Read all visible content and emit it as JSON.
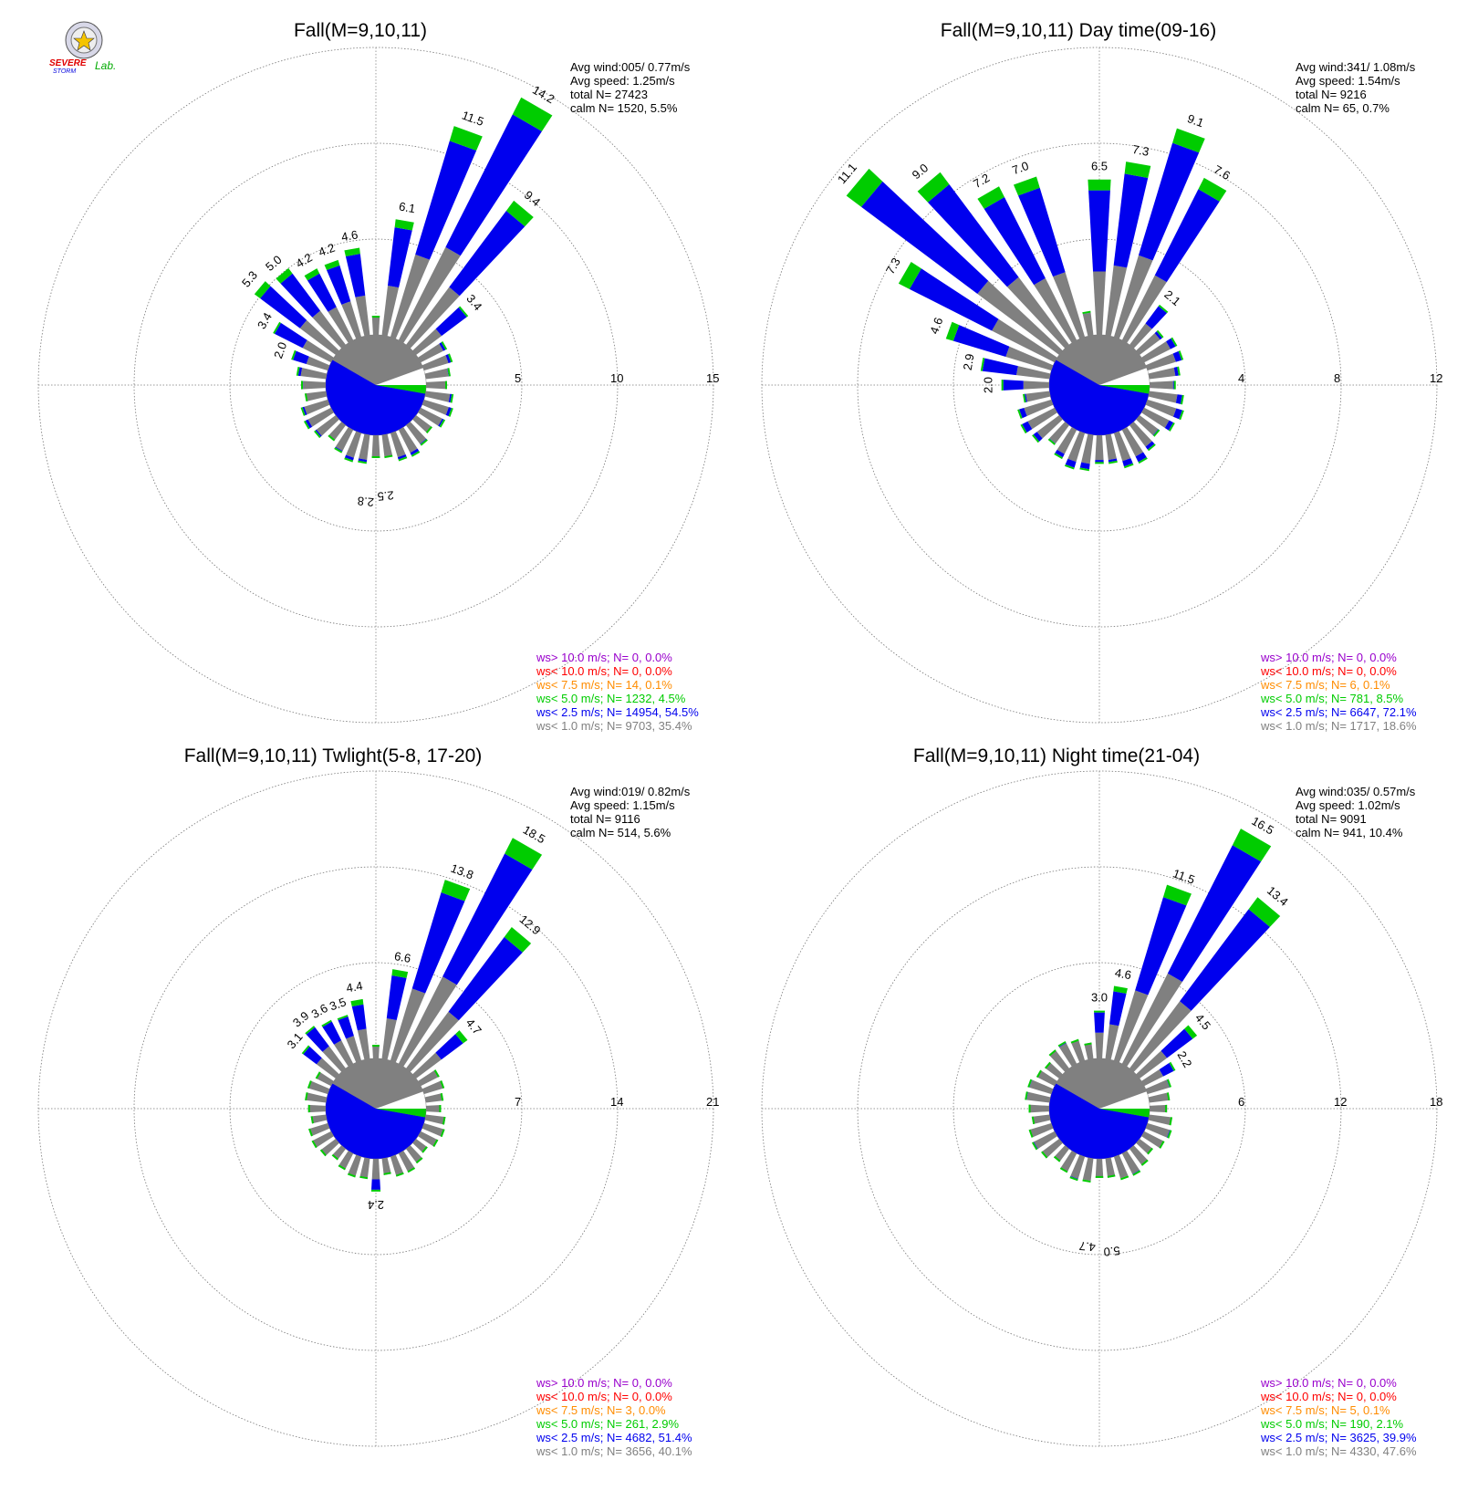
{
  "logo": {
    "text_severe": "SEVERE",
    "text_storm": "STORM",
    "text_lab": "Lab."
  },
  "colors": {
    "calm_slice": "#ffffff",
    "bin_lt1": "#808080",
    "bin_lt2_5": "#0000ee",
    "bin_lt5": "#00cc00",
    "bin_lt7_5": "#ff8c00",
    "bin_lt10": "#ff0000",
    "bin_gt10": "#9900cc",
    "grid": "#777777"
  },
  "chart_data": [
    {
      "type": "windrose",
      "title": "Fall(M=9,10,11)",
      "ring_labels": [
        "5",
        "10",
        "15"
      ],
      "rmax": 15,
      "stats": [
        "Avg wind:005/ 0.77m/s",
        "Avg speed: 1.25m/s",
        "total N=      27423",
        "calm N=   1520,   5.5%"
      ],
      "legend": [
        {
          "text": "ws> 10.0 m/s; N=      0,  0.0%",
          "color": "#9900cc"
        },
        {
          "text": "ws< 10.0 m/s; N=      0,  0.0%",
          "color": "#ff0000"
        },
        {
          "text": "ws<  7.5 m/s; N=     14,  0.1%",
          "color": "#ff8c00"
        },
        {
          "text": "ws<  5.0 m/s; N=  1232,  4.5%",
          "color": "#00cc00"
        },
        {
          "text": "ws<  2.5 m/s; N= 14954, 54.5%",
          "color": "#0000ee"
        },
        {
          "text": "ws<  1.0 m/s; N=  9703, 35.4%",
          "color": "#808080"
        }
      ],
      "labeled": [
        {
          "dir": 350,
          "total": 4.6,
          "label": "4.6"
        },
        {
          "dir": 10,
          "total": 6.1,
          "label": "6.1"
        },
        {
          "dir": 20,
          "total": 11.5,
          "label": "11.5"
        },
        {
          "dir": 30,
          "total": 14.2,
          "label": "14.2"
        },
        {
          "dir": 40,
          "total": 9.4,
          "label": "9.4"
        },
        {
          "dir": 50,
          "total": 3.4,
          "label": "3.4"
        },
        {
          "dir": 175,
          "total": 2.5,
          "label": "2.5"
        },
        {
          "dir": 185,
          "total": 2.8,
          "label": "2.8"
        },
        {
          "dir": 290,
          "total": 2.0,
          "label": "2.0"
        },
        {
          "dir": 300,
          "total": 3.4,
          "label": "3.4"
        },
        {
          "dir": 310,
          "total": 5.3,
          "label": "5.3"
        },
        {
          "dir": 320,
          "total": 5.0,
          "label": "5.0"
        },
        {
          "dir": 330,
          "total": 4.2,
          "label": "4.2"
        },
        {
          "dir": 340,
          "total": 4.2,
          "label": "4.2"
        }
      ]
    },
    {
      "type": "windrose",
      "title": "Fall(M=9,10,11) Day time(09-16)",
      "ring_labels": [
        "4",
        "8",
        "12"
      ],
      "rmax": 12,
      "stats": [
        "Avg wind:341/ 1.08m/s",
        "Avg speed: 1.54m/s",
        "total N=       9216",
        "calm N=     65,   0.7%"
      ],
      "legend": [
        {
          "text": "ws> 10.0 m/s; N=      0,  0.0%",
          "color": "#9900cc"
        },
        {
          "text": "ws< 10.0 m/s; N=      0,  0.0%",
          "color": "#ff0000"
        },
        {
          "text": "ws<  7.5 m/s; N=      6,  0.1%",
          "color": "#ff8c00"
        },
        {
          "text": "ws<  5.0 m/s; N=    781,  8.5%",
          "color": "#00cc00"
        },
        {
          "text": "ws<  2.5 m/s; N=  6647, 72.1%",
          "color": "#0000ee"
        },
        {
          "text": "ws<  1.0 m/s; N=  1717, 18.6%",
          "color": "#808080"
        }
      ],
      "labeled": [
        {
          "dir": 270,
          "total": 2.0,
          "label": "2.0"
        },
        {
          "dir": 280,
          "total": 2.9,
          "label": "2.9"
        },
        {
          "dir": 290,
          "total": 4.6,
          "label": "4.6"
        },
        {
          "dir": 300,
          "total": 7.3,
          "label": "7.3"
        },
        {
          "dir": 310,
          "total": 11.1,
          "label": "11.1"
        },
        {
          "dir": 320,
          "total": 9.0,
          "label": "9.0"
        },
        {
          "dir": 330,
          "total": 7.2,
          "label": "7.2"
        },
        {
          "dir": 340,
          "total": 7.0,
          "label": "7.0"
        },
        {
          "dir": 0,
          "total": 6.5,
          "label": "6.5"
        },
        {
          "dir": 10,
          "total": 7.3,
          "label": "7.3"
        },
        {
          "dir": 20,
          "total": 9.1,
          "label": "9.1"
        },
        {
          "dir": 30,
          "total": 7.6,
          "label": "7.6"
        },
        {
          "dir": 40,
          "total": 2.1,
          "label": "2.1"
        }
      ]
    },
    {
      "type": "windrose",
      "title": "Fall(M=9,10,11) Twlight(5-8, 17-20)",
      "ring_labels": [
        "7",
        "14",
        "21"
      ],
      "rmax": 21,
      "stats": [
        "Avg wind:019/ 0.82m/s",
        "Avg speed: 1.15m/s",
        "total N=       9116",
        "calm N=    514,   5.6%"
      ],
      "legend": [
        {
          "text": "ws> 10.0 m/s; N=      0,  0.0%",
          "color": "#9900cc"
        },
        {
          "text": "ws< 10.0 m/s; N=      0,  0.0%",
          "color": "#ff0000"
        },
        {
          "text": "ws<  7.5 m/s; N=      3,  0.0%",
          "color": "#ff8c00"
        },
        {
          "text": "ws<  5.0 m/s; N=    261,  2.9%",
          "color": "#00cc00"
        },
        {
          "text": "ws<  2.5 m/s; N=  4682, 51.4%",
          "color": "#0000ee"
        },
        {
          "text": "ws<  1.0 m/s; N=  3656, 40.1%",
          "color": "#808080"
        }
      ],
      "labeled": [
        {
          "dir": 310,
          "total": 3.1,
          "label": "3.1"
        },
        {
          "dir": 320,
          "total": 3.9,
          "label": "3.9"
        },
        {
          "dir": 330,
          "total": 3.6,
          "label": "3.6"
        },
        {
          "dir": 340,
          "total": 3.5,
          "label": "3.5"
        },
        {
          "dir": 350,
          "total": 4.4,
          "label": "4.4"
        },
        {
          "dir": 10,
          "total": 6.6,
          "label": "6.6"
        },
        {
          "dir": 20,
          "total": 13.8,
          "label": "13.8"
        },
        {
          "dir": 30,
          "total": 18.5,
          "label": "18.5"
        },
        {
          "dir": 40,
          "total": 12.9,
          "label": "12.9"
        },
        {
          "dir": 50,
          "total": 4.7,
          "label": "4.7"
        },
        {
          "dir": 180,
          "total": 2.4,
          "label": "2.4"
        }
      ]
    },
    {
      "type": "windrose",
      "title": "Fall(M=9,10,11) Night time(21-04)",
      "ring_labels": [
        "6",
        "12",
        "18"
      ],
      "rmax": 18,
      "stats": [
        "Avg wind:035/ 0.57m/s",
        "Avg speed: 1.02m/s",
        "total N=       9091",
        "calm N=    941,  10.4%"
      ],
      "legend": [
        {
          "text": "ws> 10.0 m/s; N=      0,  0.0%",
          "color": "#9900cc"
        },
        {
          "text": "ws< 10.0 m/s; N=      0,  0.0%",
          "color": "#ff0000"
        },
        {
          "text": "ws<  7.5 m/s; N=      5,  0.1%",
          "color": "#ff8c00"
        },
        {
          "text": "ws<  5.0 m/s; N=    190,  2.1%",
          "color": "#00cc00"
        },
        {
          "text": "ws<  2.5 m/s; N=  3625, 39.9%",
          "color": "#0000ee"
        },
        {
          "text": "ws<  1.0 m/s; N=  4330, 47.6%",
          "color": "#808080"
        }
      ],
      "labeled": [
        {
          "dir": 0,
          "total": 3.0,
          "label": "3.0"
        },
        {
          "dir": 10,
          "total": 4.6,
          "label": "4.6"
        },
        {
          "dir": 20,
          "total": 11.5,
          "label": "11.5"
        },
        {
          "dir": 30,
          "total": 16.5,
          "label": "16.5"
        },
        {
          "dir": 40,
          "total": 13.4,
          "label": "13.4"
        },
        {
          "dir": 50,
          "total": 4.5,
          "label": "4.5"
        },
        {
          "dir": 60,
          "total": 2.2,
          "label": "2.2"
        },
        {
          "dir": 175,
          "total": 5.0,
          "label": "5.0"
        },
        {
          "dir": 185,
          "total": 4.7,
          "label": "4.7"
        }
      ]
    }
  ]
}
